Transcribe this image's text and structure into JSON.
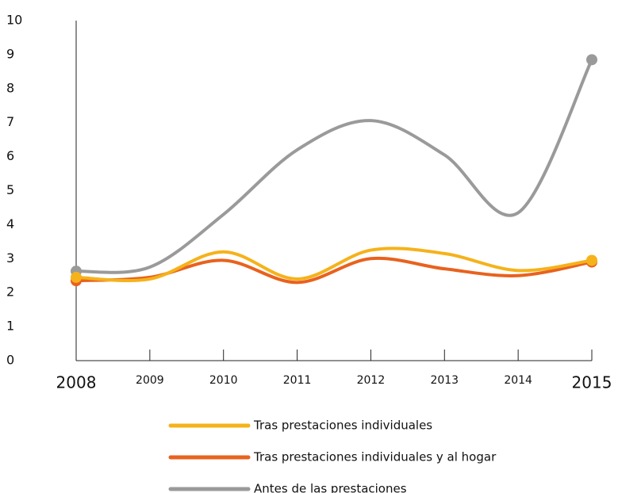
{
  "chart_data": {
    "type": "line",
    "categories": [
      "2008",
      "2009",
      "2010",
      "2011",
      "2012",
      "2013",
      "2014",
      "2015"
    ],
    "series": [
      {
        "name": "Tras prestaciones individuales",
        "color": "#f5b21a",
        "values": [
          2.45,
          2.4,
          3.2,
          2.4,
          3.25,
          3.15,
          2.65,
          2.95
        ]
      },
      {
        "name": "Tras prestaciones individuales y al hogar",
        "color": "#e8621e",
        "values": [
          2.35,
          2.45,
          2.95,
          2.3,
          3.0,
          2.7,
          2.5,
          2.9
        ]
      },
      {
        "name": "Antes de las prestaciones",
        "color": "#9a9a9a",
        "values": [
          2.63,
          2.75,
          4.3,
          6.2,
          7.06,
          6.05,
          4.35,
          8.85
        ]
      }
    ],
    "ylim": [
      0,
      10
    ],
    "yticks": [
      0,
      1,
      2,
      3,
      4,
      5,
      6,
      7,
      8,
      9,
      10
    ],
    "grid": false
  }
}
